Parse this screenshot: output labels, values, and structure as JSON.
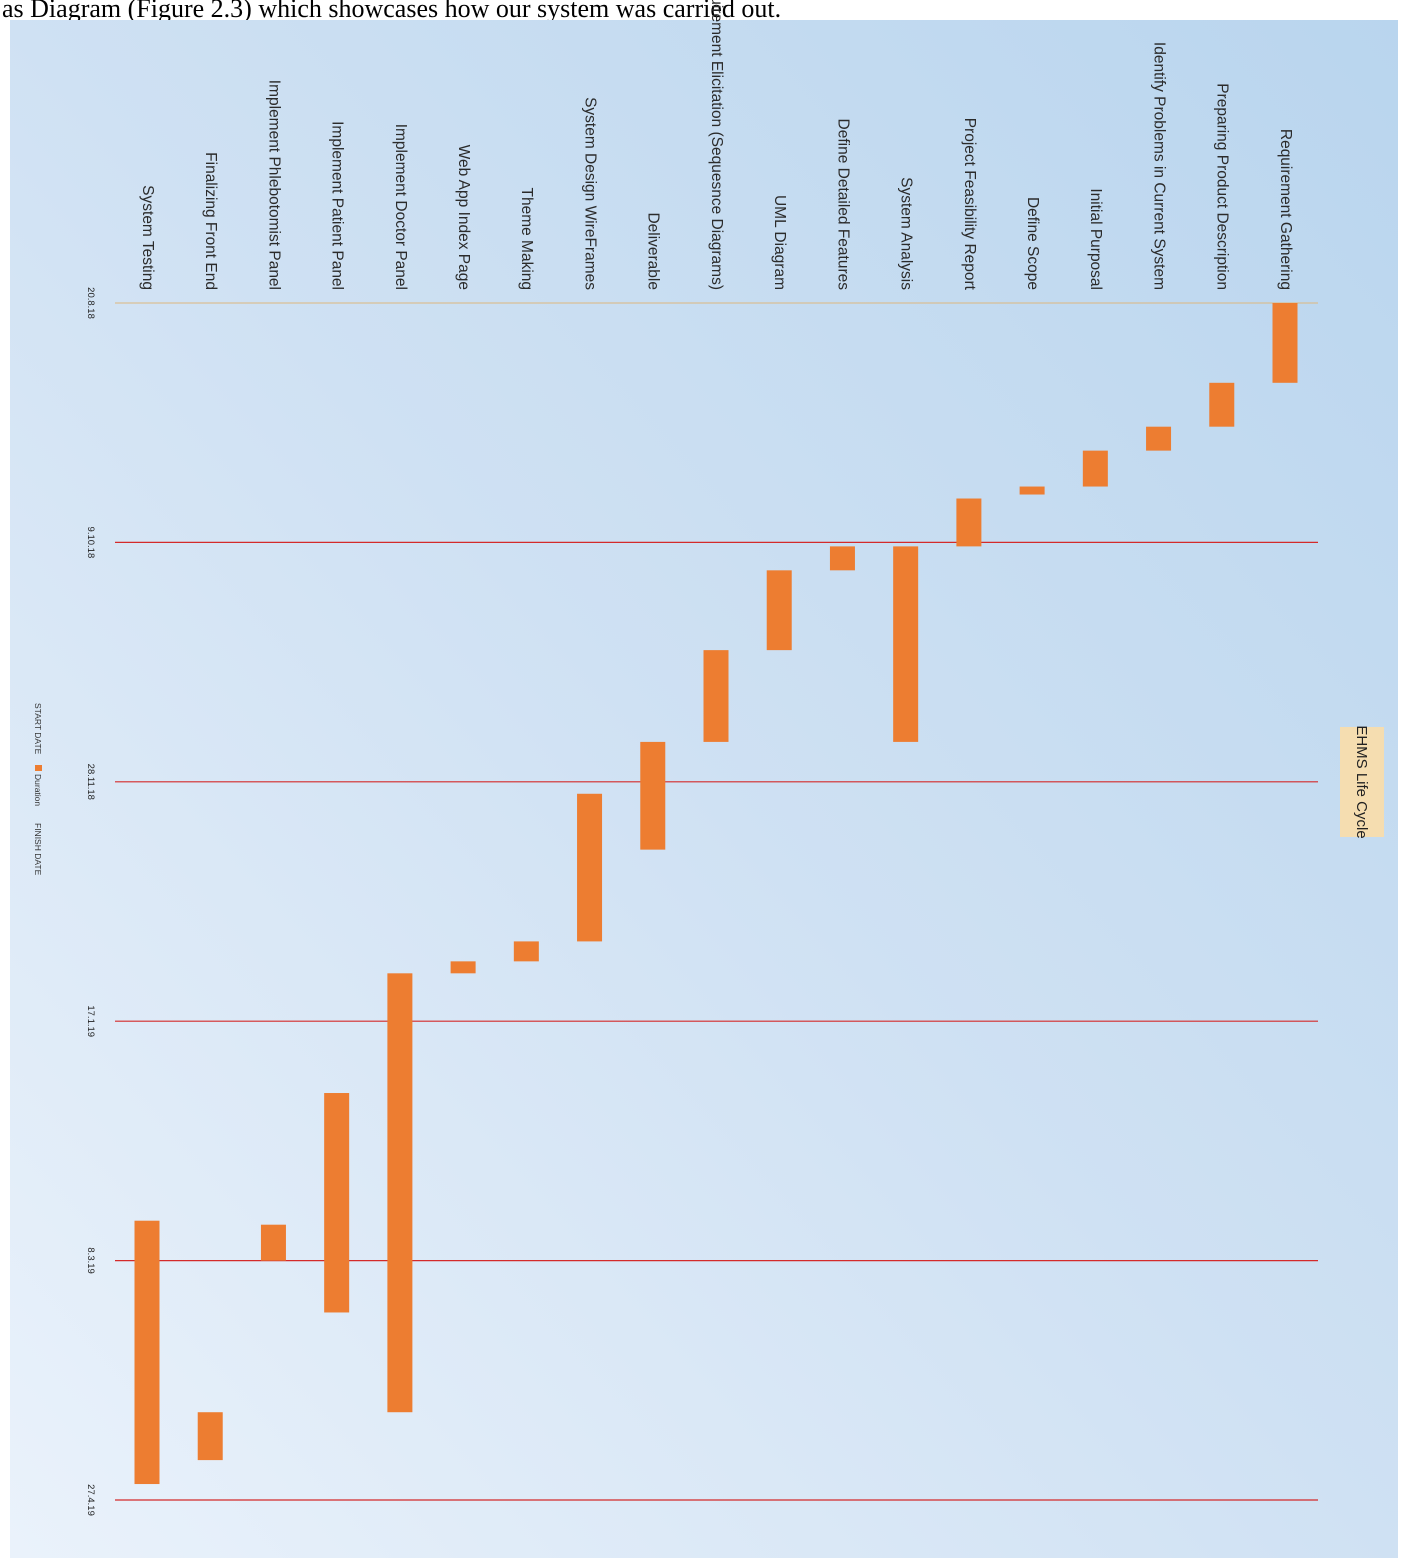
{
  "caption": "as Diagram (Figure 2.3) which showcases how our system was carried out.",
  "chart_data": {
    "type": "bar",
    "orientation": "gantt",
    "title": "EHMS Life Cycle",
    "tasks": [
      {
        "label": "Requirement Gathering",
        "start": 0,
        "duration": 10
      },
      {
        "label": "Preparing Product Description",
        "start": 10,
        "duration": 5.5
      },
      {
        "label": "Identify Problems in Current System",
        "start": 15.5,
        "duration": 3
      },
      {
        "label": "Initial Purposal",
        "start": 18.5,
        "duration": 4.5
      },
      {
        "label": "Define Scope",
        "start": 23,
        "duration": 1
      },
      {
        "label": "Project Feasibility Report",
        "start": 24.5,
        "duration": 6
      },
      {
        "label": "System Analysis",
        "start": 30.5,
        "duration": 24.5
      },
      {
        "label": "Define Detailed Features",
        "start": 30.5,
        "duration": 3
      },
      {
        "label": "UML Diagram",
        "start": 33.5,
        "duration": 10
      },
      {
        "label": "Requirement Elicitation (Sequesnce Diagrams)",
        "start": 43.5,
        "duration": 11.5
      },
      {
        "label": "Deliverable",
        "start": 55,
        "duration": 13.5
      },
      {
        "label": "System Design WireFrames",
        "start": 61.5,
        "duration": 18.5
      },
      {
        "label": "Theme Making",
        "start": 80,
        "duration": 2.5
      },
      {
        "label": "Web App Index Page",
        "start": 82.5,
        "duration": 1.5
      },
      {
        "label": "Implement Doctor Panel",
        "start": 84,
        "duration": 55
      },
      {
        "label": "Implement Patient Panel",
        "start": 99,
        "duration": 27.5
      },
      {
        "label": "Implement Phlebotomist Panel",
        "start": 115.5,
        "duration": 4.5
      },
      {
        "label": "Finalizing Front End",
        "start": 139,
        "duration": 6
      },
      {
        "label": "System Testing",
        "start": 115,
        "duration": 33
      }
    ],
    "tick_labels": [
      "20.8.18",
      "9.10.18",
      "28.11.18",
      "17.1.19",
      "8.3.19",
      "27.4.19"
    ],
    "tick_values": [
      0,
      30,
      60,
      90,
      120,
      150
    ],
    "xlim": [
      0,
      150
    ],
    "legend": [
      "START DATE",
      "Duration",
      "FINISH DATE"
    ],
    "legend_placement": "bottom",
    "grid": true,
    "colors": {
      "bar": "#ED7D31",
      "gridline": "#D42A2A",
      "baseline": "#DDB77E",
      "title_box": "#F5DDB0",
      "legend_swatch": "#ED7D31"
    }
  }
}
